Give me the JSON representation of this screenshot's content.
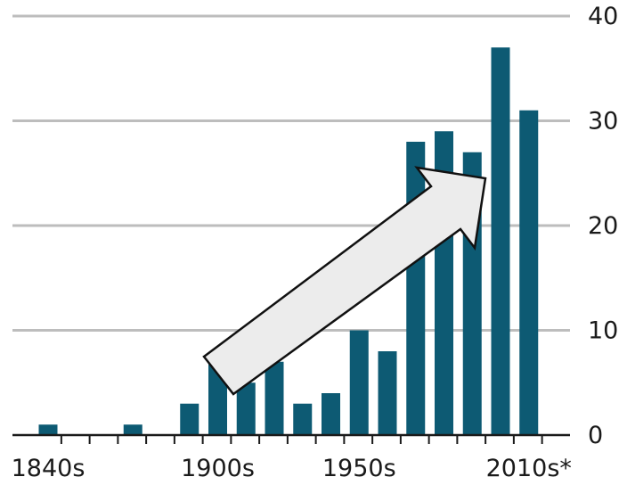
{
  "chart_data": {
    "type": "bar",
    "categories": [
      "1840s",
      "1850s",
      "1860s",
      "1870s",
      "1880s",
      "1890s",
      "1900s",
      "1910s",
      "1920s",
      "1930s",
      "1940s",
      "1950s",
      "1960s",
      "1970s",
      "1980s",
      "1990s",
      "2000s",
      "2010s*"
    ],
    "values": [
      1,
      0,
      0,
      1,
      0,
      3,
      7,
      5,
      7,
      3,
      4,
      10,
      8,
      28,
      29,
      27,
      37,
      31
    ],
    "x_tick_labels": [
      "1840s",
      "1900s",
      "1950s",
      "2010s*"
    ],
    "y_ticks": [
      0,
      10,
      20,
      30,
      40
    ],
    "ylim": [
      0,
      40
    ],
    "title": "",
    "xlabel": "",
    "ylabel": "",
    "grid": true,
    "y_axis_side": "right",
    "bar_color": "#0d5a73",
    "annotation": "upward-trend-arrow"
  }
}
